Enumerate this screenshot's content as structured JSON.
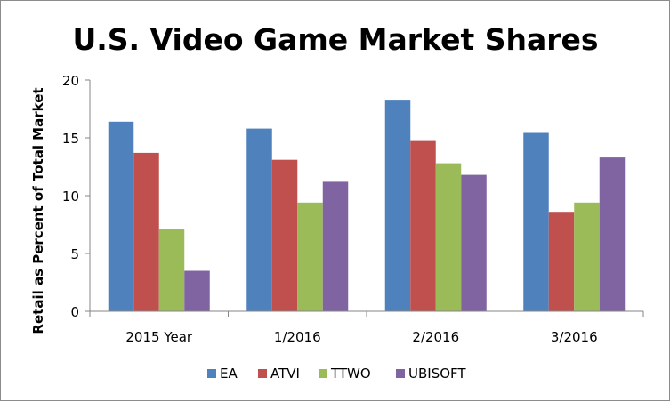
{
  "chart_data": {
    "type": "bar",
    "title": "U.S. Video Game Market Shares",
    "xlabel": "",
    "ylabel": "Retail as Percent of Total Market",
    "ylim": [
      0,
      20
    ],
    "yticks": [
      0,
      5,
      10,
      15,
      20
    ],
    "grid": false,
    "legend_position": "bottom",
    "categories": [
      "2015 Year",
      "1/2016",
      "2/2016",
      "3/2016"
    ],
    "series": [
      {
        "name": "EA",
        "color": "#4f81bd",
        "values": [
          16.4,
          15.8,
          18.3,
          15.5
        ]
      },
      {
        "name": "ATVI",
        "color": "#c0504d",
        "values": [
          13.7,
          13.1,
          14.8,
          8.6
        ]
      },
      {
        "name": "TTWO",
        "color": "#9bbb59",
        "values": [
          7.1,
          9.4,
          12.8,
          9.4
        ]
      },
      {
        "name": "UBISOFT",
        "color": "#8064a2",
        "values": [
          3.5,
          11.2,
          11.8,
          13.3
        ]
      }
    ]
  }
}
